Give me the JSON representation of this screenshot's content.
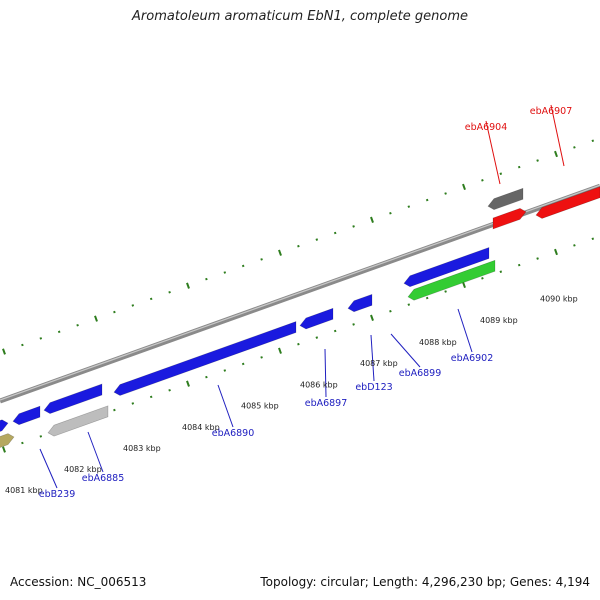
{
  "title": "Aromatoleum aromaticum EbN1, complete genome",
  "footer": {
    "accession": "Accession: NC_006513",
    "summary": "Topology: circular; Length: 4,296,230 bp; Genes: 4,194"
  },
  "colors": {
    "backbone": "#8a8a8a",
    "ticks": "#2e7d1e",
    "plus_strand_gene": "#1a1adf",
    "minus_strand_gene": "#ee1111",
    "grey_gene": "#bdbdbd",
    "dark_gene": "#666666",
    "green_gene": "#33cc33",
    "olive_gene": "#b5a860",
    "blue_label": "#2020c0",
    "red_label": "#e01010"
  },
  "scale_labels": [
    {
      "text": "4081 kbp",
      "kbp": 4081
    },
    {
      "text": "4082 kbp",
      "kbp": 4082
    },
    {
      "text": "4083 kbp",
      "kbp": 4083
    },
    {
      "text": "4084 kbp",
      "kbp": 4084
    },
    {
      "text": "4085 kbp",
      "kbp": 4085
    },
    {
      "text": "4086 kbp",
      "kbp": 4086
    },
    {
      "text": "4087 kbp",
      "kbp": 4087
    },
    {
      "text": "4088 kbp",
      "kbp": 4088
    },
    {
      "text": "4089 kbp",
      "kbp": 4089
    },
    {
      "text": "4090 kbp",
      "kbp": 4090
    }
  ],
  "gene_labels": [
    {
      "text": "ebB239",
      "color": "blue"
    },
    {
      "text": "ebA6885",
      "color": "blue"
    },
    {
      "text": "ebA6890",
      "color": "blue"
    },
    {
      "text": "ebA6897",
      "color": "blue"
    },
    {
      "text": "ebD123",
      "color": "blue"
    },
    {
      "text": "ebA6899",
      "color": "blue"
    },
    {
      "text": "ebA6902",
      "color": "blue"
    },
    {
      "text": "ebA6904",
      "color": "red"
    },
    {
      "text": "ebA6907",
      "color": "red"
    }
  ]
}
